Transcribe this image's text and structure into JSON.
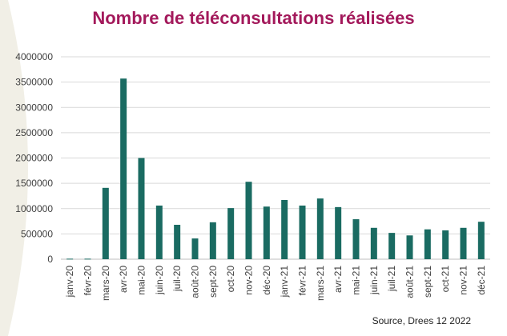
{
  "chart_data": {
    "type": "bar",
    "title": "Nombre de téléconsultations réalisées",
    "source": "Source, Drees 12 2022",
    "categories": [
      "janv-20",
      "févr-20",
      "mars-20",
      "avr-20",
      "mai-20",
      "juin-20",
      "juil-20",
      "août-20",
      "sept-20",
      "oct-20",
      "nov-20",
      "déc-20",
      "janv-21",
      "févr-21",
      "mars-21",
      "avr-21",
      "mai-21",
      "juin-21",
      "juil-21",
      "août-21",
      "sept-21",
      "oct-21",
      "nov-21",
      "déc-21"
    ],
    "values": [
      10000,
      10000,
      1410000,
      3570000,
      2000000,
      1060000,
      680000,
      410000,
      730000,
      1010000,
      1530000,
      1040000,
      1170000,
      1060000,
      1200000,
      1030000,
      790000,
      620000,
      520000,
      470000,
      590000,
      570000,
      620000,
      740000
    ],
    "ylim": [
      0,
      4000000
    ],
    "yticks": [
      "0",
      "500000",
      "1000000",
      "1500000",
      "2000000",
      "2500000",
      "3000000",
      "3500000",
      "4000000"
    ],
    "grid": true,
    "legend": "none",
    "colors": {
      "bar": "#1a6b62",
      "title": "#a3195b",
      "grid": "#d9d9d9"
    }
  }
}
